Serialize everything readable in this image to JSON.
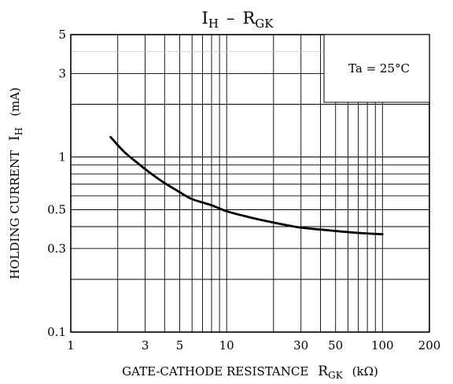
{
  "chart_data": {
    "type": "line",
    "title": {
      "main": "I",
      "main_sub": "H",
      "dash": "–",
      "second": "R",
      "second_sub": "GK"
    },
    "xlabel": {
      "text": "GATE-CATHODE RESISTANCE",
      "sym": "R",
      "sub": "GK",
      "unit": "(kΩ)"
    },
    "ylabel": {
      "text": "HOLDING CURRENT",
      "sym": "I",
      "sub": "H",
      "unit": "(mA)"
    },
    "annotation": "Ta = 25°C",
    "x_scale": "log",
    "y_scale": "log",
    "xlim": [
      1,
      200
    ],
    "ylim": [
      0.1,
      5
    ],
    "x_ticks": [
      {
        "v": 1,
        "label": "1"
      },
      {
        "v": 3,
        "label": "3"
      },
      {
        "v": 5,
        "label": "5"
      },
      {
        "v": 10,
        "label": "10"
      },
      {
        "v": 30,
        "label": "30"
      },
      {
        "v": 50,
        "label": "50"
      },
      {
        "v": 100,
        "label": "100"
      },
      {
        "v": 200,
        "label": "200"
      }
    ],
    "y_ticks": [
      {
        "v": 0.1,
        "label": "0.1"
      },
      {
        "v": 0.3,
        "label": "0.3"
      },
      {
        "v": 0.5,
        "label": "0.5"
      },
      {
        "v": 1,
        "label": "1"
      },
      {
        "v": 3,
        "label": "3"
      },
      {
        "v": 5,
        "label": "5"
      }
    ],
    "grid": true,
    "x_grid": [
      2,
      3,
      4,
      5,
      6,
      7,
      8,
      9,
      10,
      20,
      30,
      40,
      50,
      60,
      70,
      80,
      90,
      100
    ],
    "y_grid": [
      0.2,
      0.3,
      0.4,
      0.5,
      0.6,
      0.7,
      0.8,
      0.9,
      1,
      2,
      3
    ],
    "series": [
      {
        "x": [
          1.8,
          2.2,
          2.7,
          3.3,
          4,
          5,
          6,
          8,
          10,
          13,
          17,
          22,
          30,
          40,
          55,
          75,
          100
        ],
        "y": [
          1.3,
          1.07,
          0.92,
          0.8,
          0.71,
          0.63,
          0.575,
          0.53,
          0.49,
          0.46,
          0.435,
          0.415,
          0.395,
          0.385,
          0.375,
          0.367,
          0.362
        ]
      }
    ]
  }
}
